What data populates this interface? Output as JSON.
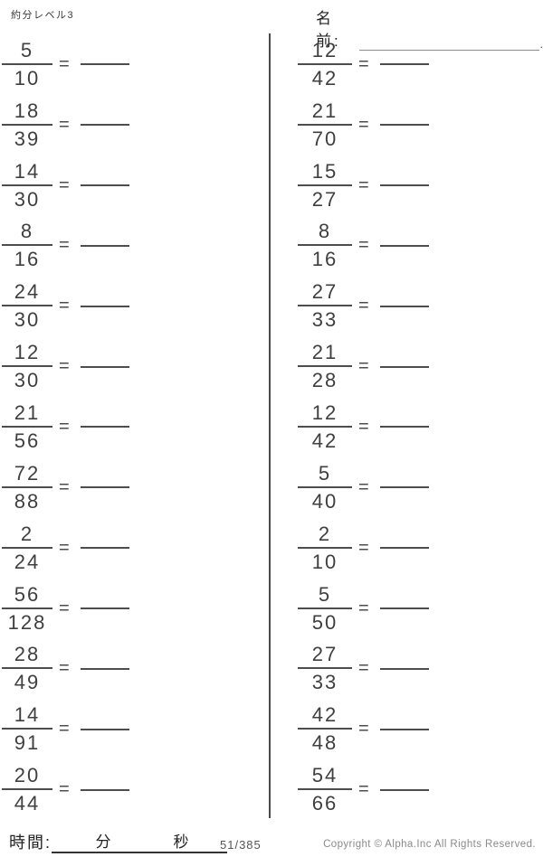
{
  "header": {
    "title": "約分レベル3",
    "name_label": "名前:",
    "name_line_terminator": "."
  },
  "problems": {
    "equals_sign": "=",
    "left": [
      {
        "num": "5",
        "den": "10"
      },
      {
        "num": "18",
        "den": "39"
      },
      {
        "num": "14",
        "den": "30"
      },
      {
        "num": "8",
        "den": "16"
      },
      {
        "num": "24",
        "den": "30"
      },
      {
        "num": "12",
        "den": "30"
      },
      {
        "num": "21",
        "den": "56"
      },
      {
        "num": "72",
        "den": "88"
      },
      {
        "num": "2",
        "den": "24"
      },
      {
        "num": "56",
        "den": "128"
      },
      {
        "num": "28",
        "den": "49"
      },
      {
        "num": "14",
        "den": "91"
      },
      {
        "num": "20",
        "den": "44"
      }
    ],
    "right": [
      {
        "num": "12",
        "den": "42"
      },
      {
        "num": "21",
        "den": "70"
      },
      {
        "num": "15",
        "den": "27"
      },
      {
        "num": "8",
        "den": "16"
      },
      {
        "num": "27",
        "den": "33"
      },
      {
        "num": "21",
        "den": "28"
      },
      {
        "num": "12",
        "den": "42"
      },
      {
        "num": "5",
        "den": "40"
      },
      {
        "num": "2",
        "den": "10"
      },
      {
        "num": "5",
        "den": "50"
      },
      {
        "num": "27",
        "den": "33"
      },
      {
        "num": "42",
        "den": "48"
      },
      {
        "num": "54",
        "den": "66"
      }
    ]
  },
  "footer": {
    "time_label": "時間:",
    "minutes_label": "分",
    "seconds_label": "秒",
    "page_indicator": "51/385",
    "copyright": "Copyright ©  Alpha.Inc All Rights Reserved."
  },
  "colors": {
    "ink": "#3f3f3f",
    "rule_line": "#4d4d4d",
    "muted": "#8a8a8a"
  }
}
